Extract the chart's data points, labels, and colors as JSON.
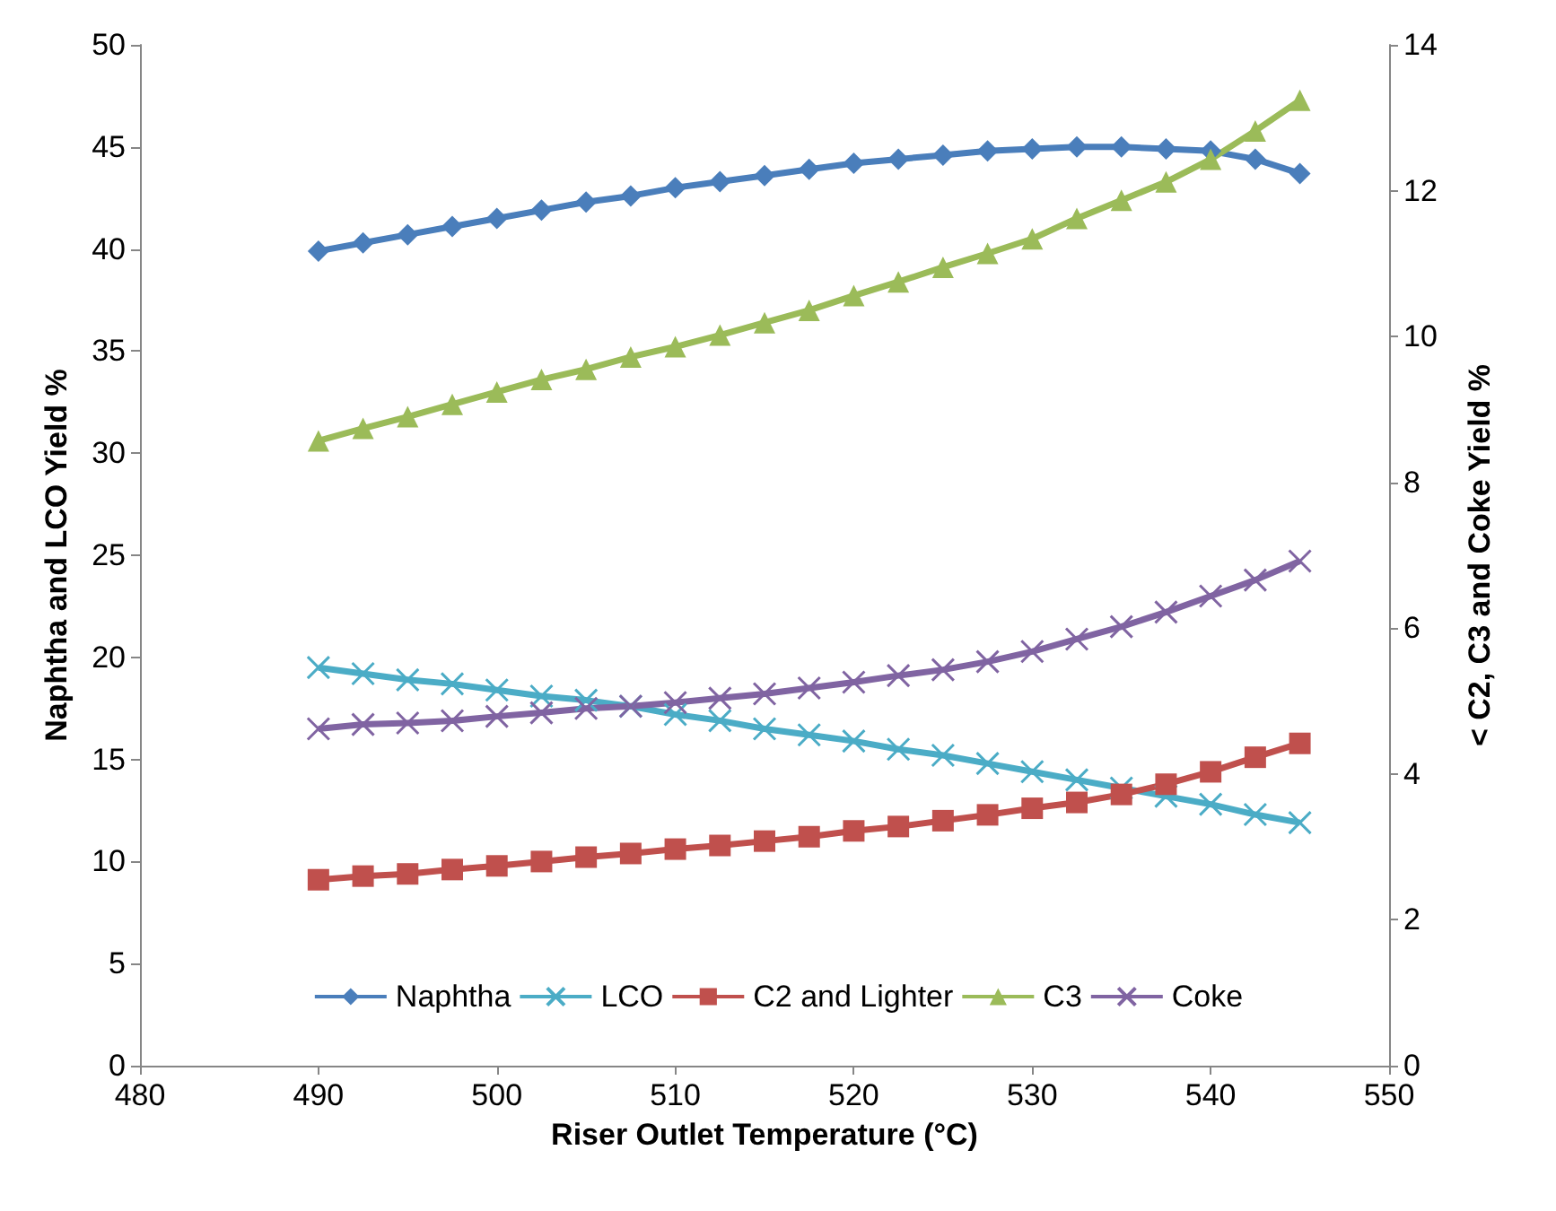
{
  "chart_data": {
    "type": "line",
    "xlabel": "Riser Outlet Temperature (°C)",
    "ylabel": "Naphtha and LCO Yield %",
    "y2label": "< C2, C3 and Coke Yield %",
    "x": [
      490,
      492.5,
      495,
      497.5,
      500,
      502.5,
      505,
      507.5,
      510,
      512.5,
      515,
      517.5,
      520,
      522.5,
      525,
      527.5,
      530,
      532.5,
      535,
      537.5,
      540,
      542.5,
      545
    ],
    "xlim": [
      480,
      550
    ],
    "xticks": [
      480,
      490,
      500,
      510,
      520,
      530,
      540,
      550
    ],
    "ylim": [
      0,
      50
    ],
    "yticks": [
      0,
      5,
      10,
      15,
      20,
      25,
      30,
      35,
      40,
      45,
      50
    ],
    "y2lim": [
      0,
      14
    ],
    "y2ticks": [
      0,
      2,
      4,
      6,
      8,
      10,
      12,
      14
    ],
    "grid": false,
    "legend": "bottom",
    "line_style": "solid",
    "series": [
      {
        "name": "Naphtha",
        "color": "#4a7ebb",
        "marker": "diamond",
        "values": [
          39.9,
          40.3,
          40.7,
          41.1,
          41.5,
          41.9,
          42.3,
          42.6,
          43.0,
          43.3,
          43.6,
          43.9,
          44.2,
          44.4,
          44.6,
          44.8,
          44.9,
          45.0,
          45.0,
          44.9,
          44.8,
          44.4,
          43.7
        ]
      },
      {
        "name": "LCO",
        "color": "#4bacc6",
        "marker": "cross",
        "values": [
          19.5,
          19.2,
          18.9,
          18.7,
          18.4,
          18.1,
          17.9,
          17.6,
          17.2,
          16.9,
          16.5,
          16.2,
          15.9,
          15.5,
          15.2,
          14.8,
          14.4,
          14.0,
          13.6,
          13.2,
          12.8,
          12.3,
          11.9
        ]
      },
      {
        "name": "C2 and Lighter",
        "color": "#c0504d",
        "marker": "square",
        "axis": "y2",
        "values": [
          2.55,
          2.6,
          2.63,
          2.69,
          2.74,
          2.8,
          2.86,
          2.91,
          2.97,
          3.02,
          3.08,
          3.14,
          3.22,
          3.28,
          3.36,
          3.44,
          3.53,
          3.61,
          3.72,
          3.86,
          4.03,
          4.23,
          4.42
        ]
      },
      {
        "name": "C3",
        "color": "#9bbb59",
        "marker": "triangle",
        "axis": "y2",
        "values": [
          8.57,
          8.74,
          8.9,
          9.07,
          9.24,
          9.41,
          9.55,
          9.72,
          9.86,
          10.02,
          10.19,
          10.36,
          10.56,
          10.75,
          10.95,
          11.14,
          11.34,
          11.62,
          11.87,
          12.12,
          12.43,
          12.82,
          13.24
        ]
      },
      {
        "name": "Coke",
        "color": "#8064a2",
        "marker": "cross",
        "axis": "y2",
        "values": [
          4.62,
          4.68,
          4.7,
          4.73,
          4.79,
          4.84,
          4.9,
          4.93,
          4.98,
          5.04,
          5.1,
          5.18,
          5.26,
          5.35,
          5.43,
          5.54,
          5.68,
          5.85,
          6.02,
          6.22,
          6.44,
          6.66,
          6.92
        ]
      }
    ]
  }
}
